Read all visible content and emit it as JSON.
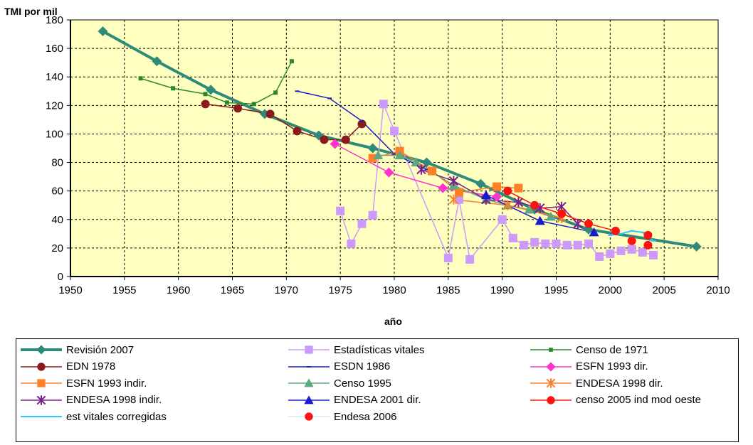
{
  "chart_data": {
    "type": "line",
    "title": "",
    "ylabel": "TMI por mil",
    "xlabel": "año",
    "xlim": [
      1950,
      2010
    ],
    "ylim": [
      0,
      180
    ],
    "xticks": [
      1950,
      1955,
      1960,
      1965,
      1970,
      1975,
      1980,
      1985,
      1990,
      1995,
      2000,
      2005,
      2010
    ],
    "yticks": [
      0,
      20,
      40,
      60,
      80,
      100,
      120,
      140,
      160,
      180
    ],
    "ytick_labels": [
      "0",
      "20",
      "40",
      "60",
      "80",
      "100",
      "120",
      "140",
      "160",
      "180"
    ],
    "grid": true,
    "plot_background": "#ffffc0",
    "legend_position": "bottom",
    "series": [
      {
        "name": "Revisión 2007",
        "color": "#2e8b7a",
        "marker": "diamond",
        "width": 4,
        "x": [
          1953,
          1958,
          1963,
          1968,
          1973,
          1978,
          1983,
          1988,
          1993,
          1998,
          2008
        ],
        "y": [
          172,
          151,
          131,
          114,
          99,
          90,
          80,
          65,
          47,
          33,
          21
        ]
      },
      {
        "name": "Estadísticas vitales",
        "color": "#cc99ff",
        "marker": "square",
        "width": 1.5,
        "x": [
          1975,
          1976,
          1977,
          1978,
          1979,
          1980,
          1985,
          1986,
          1987,
          1990,
          1991,
          1992,
          1993,
          1994,
          1995,
          1996,
          1997,
          1998,
          1999,
          2000,
          2001,
          2002,
          2003,
          2004
        ],
        "y": [
          46,
          23,
          37,
          43,
          121,
          102,
          13,
          54,
          12,
          40,
          27,
          22,
          24,
          23,
          23,
          22,
          22,
          23,
          14,
          16,
          18,
          19,
          17,
          15
        ]
      },
      {
        "name": "Censo de 1971",
        "color": "#2a8a2a",
        "marker": "smallsquare",
        "width": 1.5,
        "x": [
          1956.5,
          1959.5,
          1962.5,
          1964.5,
          1967,
          1969,
          1970.5
        ],
        "y": [
          139,
          132,
          128,
          122,
          121,
          129,
          151
        ]
      },
      {
        "name": "EDN 1978",
        "color": "#8b1a1a",
        "marker": "circle",
        "width": 1.5,
        "x": [
          1962.5,
          1965.5,
          1968.5,
          1971,
          1973.5,
          1975.5,
          1977
        ],
        "y": [
          121,
          118,
          114,
          102,
          96,
          96,
          107
        ]
      },
      {
        "name": "ESDN 1986",
        "color": "#1a1acc",
        "marker": "dash",
        "width": 1.5,
        "x": [
          1971,
          1974,
          1977,
          1980,
          1983
        ],
        "y": [
          130,
          125,
          109,
          86,
          75
        ]
      },
      {
        "name": "ESFN 1993 dir.",
        "color": "#ff33cc",
        "marker": "diamond",
        "width": 1.5,
        "x": [
          1974.5,
          1979.5,
          1984.5,
          1989.5
        ],
        "y": [
          93,
          73,
          62,
          56
        ]
      },
      {
        "name": "ESFN 1993 indir.",
        "color": "#ff7f27",
        "marker": "square",
        "width": 1.5,
        "x": [
          1978,
          1980.5,
          1983.5,
          1986,
          1989.5,
          1991.5
        ],
        "y": [
          83,
          88,
          74,
          59,
          63,
          62
        ]
      },
      {
        "name": "Censo 1995",
        "color": "#5fa87f",
        "marker": "triangle",
        "width": 1.5,
        "x": [
          1978.5,
          1980.5,
          1982,
          1985.5,
          1988.5,
          1990.5,
          1992.5,
          1994.5
        ],
        "y": [
          85,
          85,
          80,
          64,
          54,
          50,
          47,
          42
        ]
      },
      {
        "name": "ENDESA 1998 dir.",
        "color": "#ff7f27",
        "marker": "star",
        "width": 1.5,
        "x": [
          1985.5,
          1990.5,
          1995.5
        ],
        "y": [
          54,
          50,
          41
        ]
      },
      {
        "name": "ENDESA 1998 indir.",
        "color": "#7a1f8a",
        "marker": "star",
        "width": 1.5,
        "x": [
          1982.5,
          1985.5,
          1988.5,
          1991.5,
          1993.5,
          1995.5,
          1997
        ],
        "y": [
          75,
          67,
          54,
          52,
          48,
          49,
          37
        ]
      },
      {
        "name": "ENDESA 2001 dir.",
        "color": "#1a1acc",
        "marker": "triangle",
        "width": 1.5,
        "x": [
          1988.5,
          1993.5,
          1998.5
        ],
        "y": [
          57,
          39,
          31
        ]
      },
      {
        "name": "censo 2005 ind mod oeste",
        "color": "#ff1111",
        "marker": "circle",
        "width": 1.5,
        "x": [
          1990.5,
          1993,
          1995.5,
          1998,
          2000.5
        ],
        "y": [
          60,
          50,
          44,
          37,
          32
        ]
      },
      {
        "name": "est vitales corregidas",
        "color": "#33c4ff",
        "marker": "dash",
        "width": 2,
        "x": [
          2000,
          2001,
          2002,
          2003,
          2004
        ],
        "y": [
          29,
          30,
          32,
          31,
          25
        ]
      },
      {
        "name": "Endesa 2006",
        "color": "#ff1111",
        "marker": "circle",
        "width": 0,
        "x": [
          2002,
          2003.5,
          2003.5
        ],
        "y": [
          25,
          29,
          22
        ]
      }
    ]
  }
}
